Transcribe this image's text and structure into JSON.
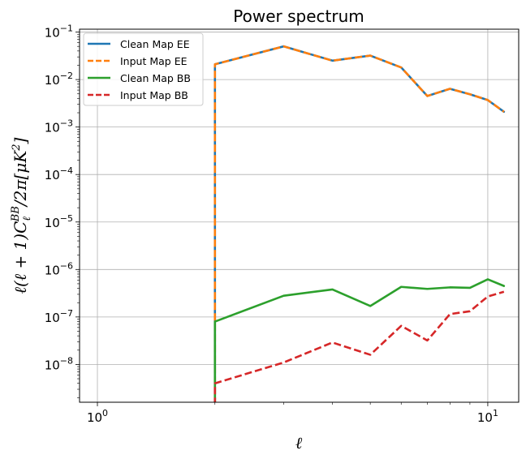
{
  "chart_data": {
    "type": "line",
    "title": "Power spectrum",
    "xlabel": "ℓ",
    "ylabel": "ℓ(ℓ + 1)C_ℓ^BB/2π[μK²]",
    "xscale": "log",
    "yscale": "log",
    "xlim": [
      0.9,
      12.0
    ],
    "ylim": [
      1.6e-09,
      0.115
    ],
    "x_ticks": [
      {
        "value": 1,
        "base": "10",
        "exp": "0"
      },
      {
        "value": 10,
        "base": "10",
        "exp": "1"
      }
    ],
    "y_ticks": [
      {
        "value": 1e-08,
        "base": "10",
        "exp": "−8"
      },
      {
        "value": 1e-07,
        "base": "10",
        "exp": "−7"
      },
      {
        "value": 1e-06,
        "base": "10",
        "exp": "−6"
      },
      {
        "value": 1e-05,
        "base": "10",
        "exp": "−5"
      },
      {
        "value": 0.0001,
        "base": "10",
        "exp": "−4"
      },
      {
        "value": 0.001,
        "base": "10",
        "exp": "−3"
      },
      {
        "value": 0.01,
        "base": "10",
        "exp": "−2"
      },
      {
        "value": 0.1,
        "base": "10",
        "exp": "−1"
      }
    ],
    "grid": true,
    "legend_position": "top-left",
    "series": [
      {
        "name": "Clean Map EE",
        "color": "#1f77b4",
        "style": "solid",
        "x": [
          2,
          2,
          3,
          4,
          5,
          6,
          7,
          8,
          9,
          10,
          11
        ],
        "y": [
          1e-12,
          0.021,
          0.05,
          0.025,
          0.032,
          0.018,
          0.0045,
          0.0064,
          0.0049,
          0.0037,
          0.0021
        ]
      },
      {
        "name": "Input Map EE",
        "color": "#ff7f0e",
        "style": "dashed",
        "x": [
          2,
          2,
          3,
          4,
          5,
          6,
          7,
          8,
          9,
          10,
          11
        ],
        "y": [
          1e-12,
          0.021,
          0.05,
          0.025,
          0.032,
          0.018,
          0.0045,
          0.0064,
          0.0049,
          0.0037,
          0.0021
        ]
      },
      {
        "name": "Clean Map BB",
        "color": "#2ca02c",
        "style": "solid",
        "x": [
          2,
          2,
          3,
          4,
          5,
          6,
          7,
          8,
          9,
          10,
          11
        ],
        "y": [
          1e-12,
          8e-08,
          2.8e-07,
          3.8e-07,
          1.7e-07,
          4.3e-07,
          3.9e-07,
          4.2e-07,
          4.1e-07,
          6.2e-07,
          4.5e-07
        ]
      },
      {
        "name": "Input Map BB",
        "color": "#d62728",
        "style": "dashed",
        "x": [
          2,
          2,
          3,
          4,
          5,
          6,
          7,
          8,
          9,
          10,
          11
        ],
        "y": [
          1e-12,
          4e-09,
          1.1e-08,
          2.9e-08,
          1.6e-08,
          6.5e-08,
          3.2e-08,
          1.15e-07,
          1.32e-07,
          2.7e-07,
          3.4e-07
        ]
      }
    ]
  }
}
